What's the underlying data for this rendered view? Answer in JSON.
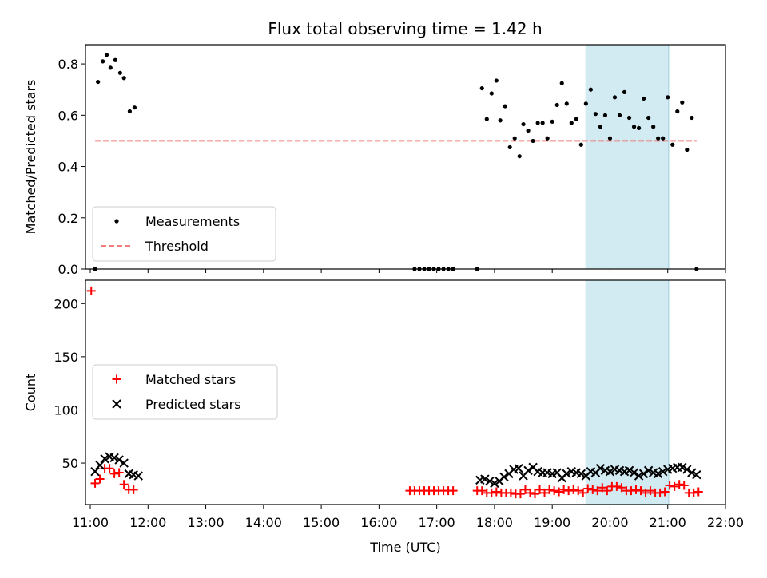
{
  "title": "Flux total observing time = 1.42 h",
  "colors": {
    "measurement": "#000000",
    "threshold": "#f08080",
    "matched": "#ff0000",
    "predicted": "#000000",
    "highlight": "#add8e6"
  },
  "chart_data": [
    {
      "type": "scatter",
      "ylabel": "Matched/Predicted stars",
      "xlim": [
        "10:55",
        "22:00"
      ],
      "ylim": [
        0,
        0.875
      ],
      "yticks": [
        "0.0",
        "0.2",
        "0.4",
        "0.6",
        "0.8"
      ],
      "shaded_interval": [
        "19:35",
        "21:01"
      ],
      "legend": {
        "placement": "lower-left",
        "entries": [
          "Measurements",
          "Threshold"
        ]
      },
      "threshold": {
        "name": "Threshold",
        "value": 0.5,
        "x_range": [
          "11:05",
          "21:30"
        ]
      },
      "series": [
        {
          "name": "Measurements",
          "x": [
            "11:05",
            "11:08",
            "11:13",
            "11:17",
            "11:21",
            "11:26",
            "11:31",
            "11:35",
            "11:41",
            "11:46",
            "16:37",
            "16:42",
            "16:47",
            "16:52",
            "16:57",
            "17:02",
            "17:07",
            "17:12",
            "17:17",
            "17:42",
            "17:47",
            "17:52",
            "17:57",
            "18:02",
            "18:06",
            "18:11",
            "18:16",
            "18:21",
            "18:26",
            "18:30",
            "18:35",
            "18:40",
            "18:45",
            "18:50",
            "18:55",
            "19:00",
            "19:05",
            "19:10",
            "19:15",
            "19:20",
            "19:25",
            "19:30",
            "19:35",
            "19:40",
            "19:45",
            "19:50",
            "19:55",
            "20:00",
            "20:05",
            "20:10",
            "20:15",
            "20:20",
            "20:25",
            "20:30",
            "20:35",
            "20:40",
            "20:45",
            "20:50",
            "20:55",
            "21:00",
            "21:05",
            "21:10",
            "21:15",
            "21:20",
            "21:25",
            "21:30"
          ],
          "y": [
            0.0,
            0.73,
            0.81,
            0.835,
            0.785,
            0.815,
            0.765,
            0.745,
            0.615,
            0.63,
            0.0,
            0.0,
            0.0,
            0.0,
            0.0,
            0.0,
            0.0,
            0.0,
            0.0,
            0.0,
            0.705,
            0.585,
            0.685,
            0.735,
            0.58,
            0.635,
            0.475,
            0.51,
            0.44,
            0.565,
            0.54,
            0.5,
            0.57,
            0.57,
            0.51,
            0.575,
            0.64,
            0.725,
            0.645,
            0.57,
            0.585,
            0.485,
            0.645,
            0.7,
            0.605,
            0.555,
            0.6,
            0.51,
            0.67,
            0.6,
            0.69,
            0.59,
            0.555,
            0.55,
            0.665,
            0.59,
            0.555,
            0.51,
            0.51,
            0.67,
            0.485,
            0.615,
            0.65,
            0.465,
            0.59,
            0.0
          ]
        }
      ]
    },
    {
      "type": "scatter",
      "xlabel": "Time (UTC)",
      "ylabel": "Count",
      "xlim": [
        "10:55",
        "22:00"
      ],
      "ylim": [
        11,
        222
      ],
      "yticks": [
        "50",
        "100",
        "150",
        "200"
      ],
      "xticks": [
        "11:00",
        "12:00",
        "13:00",
        "14:00",
        "15:00",
        "16:00",
        "17:00",
        "18:00",
        "19:00",
        "20:00",
        "21:00",
        "22:00"
      ],
      "shaded_interval": [
        "19:35",
        "21:01"
      ],
      "legend": {
        "placement": "center-left",
        "entries": [
          "Matched stars",
          "Predicted stars"
        ]
      },
      "series": [
        {
          "name": "Matched stars",
          "x": [
            "11:01",
            "11:05",
            "11:10",
            "11:15",
            "11:20",
            "11:25",
            "11:30",
            "11:35",
            "11:40",
            "11:45",
            "16:32",
            "16:37",
            "16:42",
            "16:47",
            "16:52",
            "16:57",
            "17:02",
            "17:07",
            "17:12",
            "17:17",
            "17:42",
            "17:47",
            "17:52",
            "17:57",
            "18:02",
            "18:07",
            "18:12",
            "18:17",
            "18:22",
            "18:27",
            "18:32",
            "18:37",
            "18:42",
            "18:47",
            "18:52",
            "18:57",
            "19:02",
            "19:07",
            "19:12",
            "19:17",
            "19:22",
            "19:27",
            "19:32",
            "19:37",
            "19:42",
            "19:47",
            "19:52",
            "19:57",
            "20:02",
            "20:07",
            "20:12",
            "20:17",
            "20:22",
            "20:27",
            "20:32",
            "20:37",
            "20:42",
            "20:47",
            "20:52",
            "20:57",
            "21:02",
            "21:07",
            "21:12",
            "21:17",
            "21:22",
            "21:27",
            "21:32"
          ],
          "y": [
            212,
            31,
            35,
            45,
            45,
            40,
            41,
            30,
            25,
            25,
            24,
            24,
            24,
            24,
            24,
            24,
            24,
            24,
            24,
            24,
            24,
            24,
            22,
            22,
            23,
            22,
            22,
            22,
            21,
            21,
            25,
            22,
            21,
            25,
            22,
            25,
            24,
            23,
            25,
            24,
            25,
            24,
            22,
            26,
            25,
            24,
            27,
            24,
            28,
            28,
            27,
            24,
            24,
            25,
            24,
            22,
            24,
            22,
            22,
            23,
            29,
            28,
            30,
            29,
            22,
            22,
            23
          ]
        },
        {
          "name": "Predicted stars",
          "x": [
            "11:05",
            "11:10",
            "11:15",
            "11:20",
            "11:25",
            "11:30",
            "11:35",
            "11:40",
            "11:45",
            "11:50",
            "17:45",
            "17:50",
            "17:55",
            "18:00",
            "18:05",
            "18:10",
            "18:15",
            "18:20",
            "18:25",
            "18:30",
            "18:35",
            "18:40",
            "18:45",
            "18:50",
            "18:55",
            "19:00",
            "19:05",
            "19:10",
            "19:15",
            "19:20",
            "19:25",
            "19:30",
            "19:35",
            "19:40",
            "19:45",
            "19:50",
            "19:55",
            "20:00",
            "20:05",
            "20:10",
            "20:15",
            "20:20",
            "20:25",
            "20:30",
            "20:35",
            "20:40",
            "20:45",
            "20:50",
            "20:55",
            "21:00",
            "21:05",
            "21:10",
            "21:15",
            "21:20",
            "21:25",
            "21:30"
          ],
          "y": [
            42,
            48,
            54,
            56,
            55,
            53,
            50,
            40,
            39,
            38,
            34,
            35,
            33,
            31,
            33,
            37,
            40,
            44,
            45,
            38,
            43,
            46,
            42,
            41,
            41,
            40,
            41,
            36,
            40,
            42,
            41,
            40,
            38,
            42,
            41,
            45,
            43,
            42,
            44,
            43,
            42,
            43,
            41,
            38,
            40,
            43,
            41,
            40,
            42,
            44,
            45,
            46,
            46,
            44,
            41,
            39
          ]
        }
      ]
    }
  ]
}
